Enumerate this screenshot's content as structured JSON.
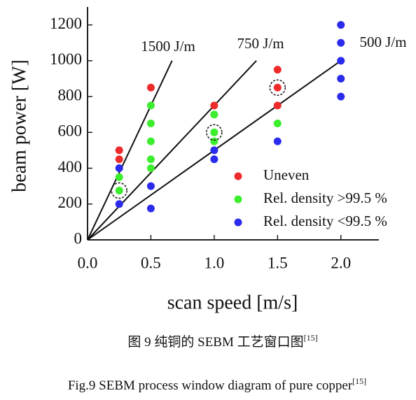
{
  "chart_data": {
    "type": "scatter",
    "x_label": "scan speed [m/s]",
    "y_label": "beam power [W]",
    "xlim": [
      0,
      2.3
    ],
    "ylim": [
      0,
      1300
    ],
    "xticks": [
      {
        "value": 0,
        "label": "0.0"
      },
      0.5,
      {
        "value": 1,
        "label": "1.0"
      },
      1.5,
      {
        "value": 2,
        "label": "2.0"
      }
    ],
    "yticks": [
      0,
      200,
      400,
      600,
      800,
      1000,
      1200
    ],
    "legend": "lower right",
    "series": [
      {
        "name": "Uneven",
        "color": "#ee2b2b",
        "x": [
          0.25,
          0.25,
          0.5,
          1.0,
          1.5,
          1.5,
          1.5
        ],
        "values": [
          500,
          450,
          850,
          750,
          950,
          850,
          750
        ]
      },
      {
        "name": "Rel. density >99.5 %",
        "color": "#3cee2e",
        "x": [
          0.25,
          0.25,
          0.5,
          0.5,
          0.5,
          0.5,
          0.5,
          1.0,
          1.0,
          1.0,
          1.5
        ],
        "values": [
          350,
          275,
          750,
          650,
          550,
          450,
          400,
          700,
          600,
          550,
          650
        ]
      },
      {
        "name": "Rel. density <99.5 %",
        "color": "#2b2bee",
        "x": [
          0.25,
          0.25,
          0.5,
          0.5,
          1.0,
          1.0,
          1.5,
          2.0,
          2.0,
          2.0,
          2.0,
          2.0
        ],
        "values": [
          400,
          200,
          300,
          175,
          500,
          450,
          550,
          1200,
          1100,
          1000,
          900,
          800
        ]
      }
    ],
    "lines": [
      {
        "label": "1500 J/m",
        "x": [
          0,
          0.667
        ],
        "values": [
          0,
          1000
        ]
      },
      {
        "label": "750 J/m",
        "x": [
          0,
          1.333
        ],
        "values": [
          0,
          1000
        ]
      },
      {
        "label": "500 J/m",
        "x": [
          0,
          2.0
        ],
        "values": [
          0,
          1000
        ]
      }
    ],
    "highlighted": [
      {
        "x": 0.25,
        "y": 275
      },
      {
        "x": 1.0,
        "y": 600
      },
      {
        "x": 1.5,
        "y": 850
      }
    ]
  },
  "captions": {
    "cn": "图 9 纯铜的 SEBM 工艺窗口图",
    "cn_ref": "[15]",
    "en": "Fig.9 SEBM process window diagram of pure copper",
    "en_ref": "[15]"
  }
}
